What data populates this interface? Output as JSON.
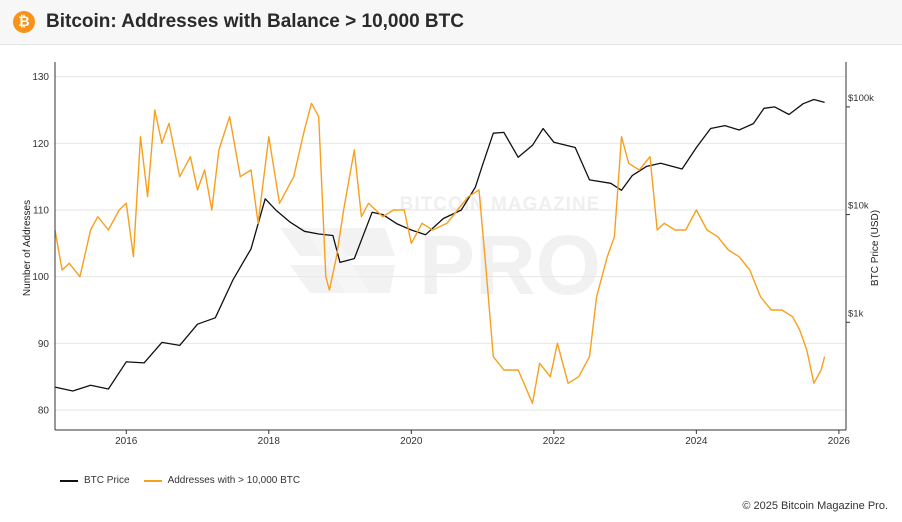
{
  "header": {
    "title": "Bitcoin: Addresses with Balance > 10,000 BTC",
    "logo_glyph": "₿",
    "logo_color": "#f7931a"
  },
  "watermark": {
    "line1": "BITCOIN MAGAZINE",
    "line2": "PRO"
  },
  "footer": {
    "copyright": "© 2025 Bitcoin Magazine Pro."
  },
  "colors": {
    "btc_price": "#111111",
    "addresses": "#f7a01e",
    "grid": "#e6e6e6",
    "axis": "#333333"
  },
  "chart_data": {
    "type": "line",
    "title": "Bitcoin: Addresses with Balance > 10,000 BTC",
    "xlabel": "",
    "ylabel_left": "Number of Addresses",
    "ylabel_right": "BTC Price (USD)",
    "xlim": [
      2015.0,
      2026.1
    ],
    "ylim_left": [
      77,
      131
    ],
    "ylim_right_log": [
      100,
      220000
    ],
    "right_scale": "log",
    "x_ticks": [
      "2016",
      "2018",
      "2020",
      "2022",
      "2024",
      "2026"
    ],
    "x_tick_values": [
      2016,
      2018,
      2020,
      2022,
      2024,
      2026
    ],
    "y_left_ticks": [
      "80",
      "90",
      "100",
      "110",
      "120",
      "130"
    ],
    "y_left_tick_values": [
      80,
      90,
      100,
      110,
      120,
      130
    ],
    "y_right_ticks": [
      "$1k",
      "$10k",
      "$100k"
    ],
    "y_right_tick_values": [
      1000,
      10000,
      100000
    ],
    "grid": true,
    "legend_position": "bottom-left",
    "series": [
      {
        "name": "BTC Price",
        "axis": "right",
        "color": "#111111",
        "x": [
          2015.0,
          2015.25,
          2015.5,
          2015.75,
          2016.0,
          2016.25,
          2016.5,
          2016.75,
          2017.0,
          2017.25,
          2017.5,
          2017.75,
          2017.95,
          2018.1,
          2018.3,
          2018.5,
          2018.7,
          2018.9,
          2019.0,
          2019.2,
          2019.45,
          2019.6,
          2019.8,
          2020.0,
          2020.2,
          2020.45,
          2020.7,
          2020.9,
          2021.0,
          2021.15,
          2021.3,
          2021.5,
          2021.7,
          2021.85,
          2022.0,
          2022.3,
          2022.5,
          2022.8,
          2022.95,
          2023.1,
          2023.3,
          2023.5,
          2023.8,
          2024.0,
          2024.2,
          2024.4,
          2024.6,
          2024.8,
          2024.95,
          2025.1,
          2025.3,
          2025.5,
          2025.65,
          2025.8
        ],
        "values": [
          250,
          230,
          260,
          240,
          430,
          420,
          650,
          610,
          960,
          1100,
          2500,
          4800,
          14000,
          11000,
          8500,
          7000,
          6600,
          6400,
          3600,
          3900,
          10500,
          10000,
          8200,
          7200,
          6500,
          9200,
          11000,
          18000,
          29000,
          57000,
          58000,
          34000,
          44000,
          63000,
          47000,
          42000,
          21000,
          19500,
          16800,
          23000,
          28000,
          30000,
          26500,
          42000,
          63000,
          67000,
          61000,
          70000,
          97000,
          100000,
          85000,
          107000,
          117000,
          110000
        ]
      },
      {
        "name": "Addresses with > 10,000 BTC",
        "axis": "left",
        "color": "#f7a01e",
        "x": [
          2015.0,
          2015.1,
          2015.2,
          2015.35,
          2015.5,
          2015.6,
          2015.75,
          2015.9,
          2016.0,
          2016.1,
          2016.2,
          2016.3,
          2016.4,
          2016.5,
          2016.6,
          2016.75,
          2016.9,
          2017.0,
          2017.1,
          2017.2,
          2017.3,
          2017.45,
          2017.6,
          2017.75,
          2017.85,
          2018.0,
          2018.15,
          2018.35,
          2018.5,
          2018.6,
          2018.7,
          2018.8,
          2018.85,
          2018.95,
          2019.05,
          2019.2,
          2019.3,
          2019.4,
          2019.5,
          2019.6,
          2019.75,
          2019.9,
          2020.0,
          2020.15,
          2020.3,
          2020.5,
          2020.65,
          2020.8,
          2020.95,
          2021.05,
          2021.15,
          2021.3,
          2021.5,
          2021.7,
          2021.8,
          2021.95,
          2022.05,
          2022.2,
          2022.35,
          2022.5,
          2022.6,
          2022.75,
          2022.85,
          2022.95,
          2023.05,
          2023.2,
          2023.35,
          2023.45,
          2023.55,
          2023.7,
          2023.85,
          2024.0,
          2024.15,
          2024.3,
          2024.45,
          2024.6,
          2024.75,
          2024.9,
          2025.05,
          2025.2,
          2025.35,
          2025.45,
          2025.55,
          2025.65,
          2025.75,
          2025.8
        ],
        "values": [
          107,
          101,
          102,
          100,
          107,
          109,
          107,
          110,
          111,
          103,
          121,
          112,
          125,
          120,
          123,
          115,
          118,
          113,
          116,
          110,
          119,
          124,
          115,
          116,
          108,
          121,
          111,
          115,
          122,
          126,
          124,
          100,
          98,
          103,
          110,
          119,
          109,
          111,
          110,
          109,
          110,
          110,
          105,
          108,
          107,
          108,
          110,
          112,
          113,
          101,
          88,
          86,
          86,
          81,
          87,
          85,
          90,
          84,
          85,
          88,
          97,
          103,
          106,
          121,
          117,
          116,
          118,
          107,
          108,
          107,
          107,
          110,
          107,
          106,
          104,
          103,
          101,
          97,
          95,
          95,
          94,
          92,
          89,
          84,
          86,
          88
        ]
      }
    ]
  }
}
